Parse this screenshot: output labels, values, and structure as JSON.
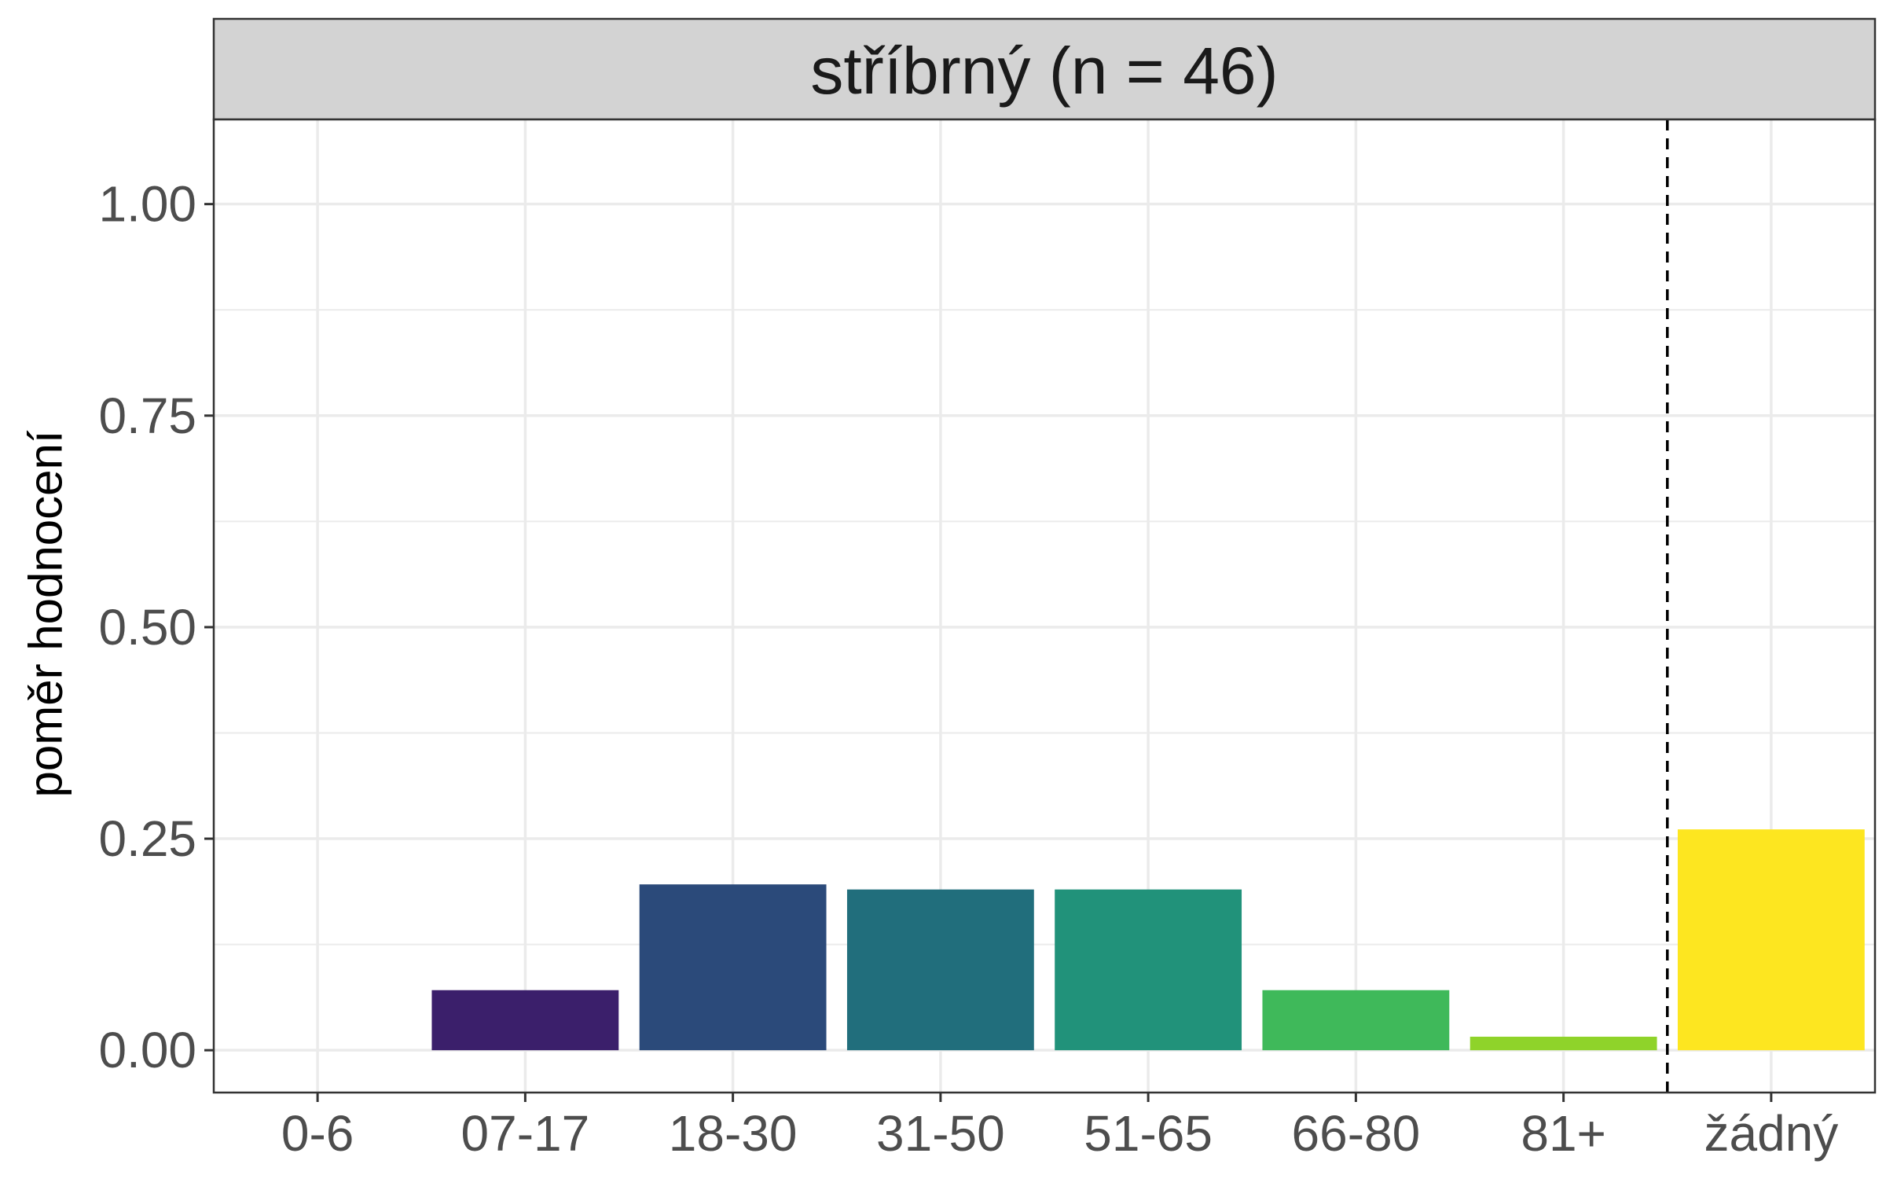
{
  "chart_data": {
    "type": "bar",
    "panel_title": "stříbrný (n = 46)",
    "ylabel": "poměr hodnocení",
    "xlabel": "",
    "categories": [
      "0-6",
      "07-17",
      "18-30",
      "31-50",
      "51-65",
      "66-80",
      "81+",
      "žádný"
    ],
    "values": [
      0.0,
      0.071,
      0.196,
      0.19,
      0.19,
      0.071,
      0.016,
      0.261
    ],
    "colors": [
      "#440154",
      "#3b1f6b",
      "#2b4a7a",
      "#216e7c",
      "#21927a",
      "#3fb95a",
      "#8fd32a",
      "#fde620"
    ],
    "ylim": [
      -0.05,
      1.1
    ],
    "yticks": [
      0.0,
      0.25,
      0.5,
      0.75,
      1.0
    ],
    "ytick_labels": [
      "0.00",
      "0.25",
      "0.50",
      "0.75",
      "1.00"
    ],
    "reference_line": {
      "between": [
        "81+",
        "žádný"
      ],
      "style": "dashed"
    },
    "grid": true,
    "legend": "none",
    "theme": {
      "strip_fill": "#d3d3d3",
      "grid_color": "#ebebeb",
      "border_color": "#333333"
    }
  }
}
